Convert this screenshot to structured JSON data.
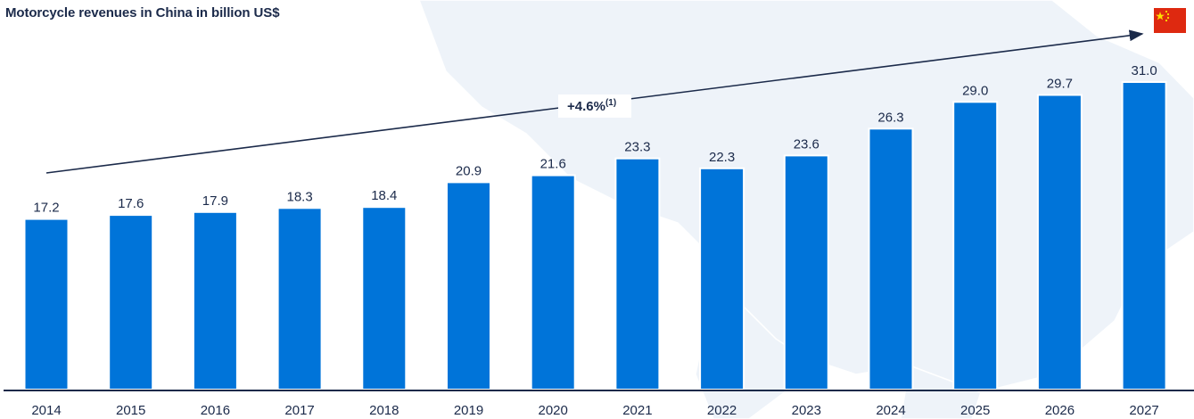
{
  "chart_data": {
    "type": "bar",
    "title": "Motorcycle revenues in China in billion US$",
    "categories": [
      "2014",
      "2015",
      "2016",
      "2017",
      "2018",
      "2019",
      "2020",
      "2021",
      "2022",
      "2023",
      "2024",
      "2025",
      "2026",
      "2027"
    ],
    "values": [
      17.2,
      17.6,
      17.9,
      18.3,
      18.4,
      20.9,
      21.6,
      23.3,
      22.3,
      23.6,
      26.3,
      29.0,
      29.7,
      31.0
    ],
    "value_labels": [
      "17.2",
      "17.6",
      "17.9",
      "18.3",
      "18.4",
      "20.9",
      "21.6",
      "23.3",
      "22.3",
      "23.6",
      "26.3",
      "29.0",
      "29.7",
      "31.0"
    ],
    "ylim": [
      0,
      31.0
    ],
    "xlabel": "",
    "ylabel": "",
    "grid": false,
    "legend": "none",
    "bar_color": "#0074d9",
    "annotation": {
      "text": "+4.6%",
      "superscript": "(1)"
    }
  },
  "flag": {
    "icon": "china-flag-icon",
    "colors": [
      "#de2910",
      "#ffde00"
    ]
  }
}
